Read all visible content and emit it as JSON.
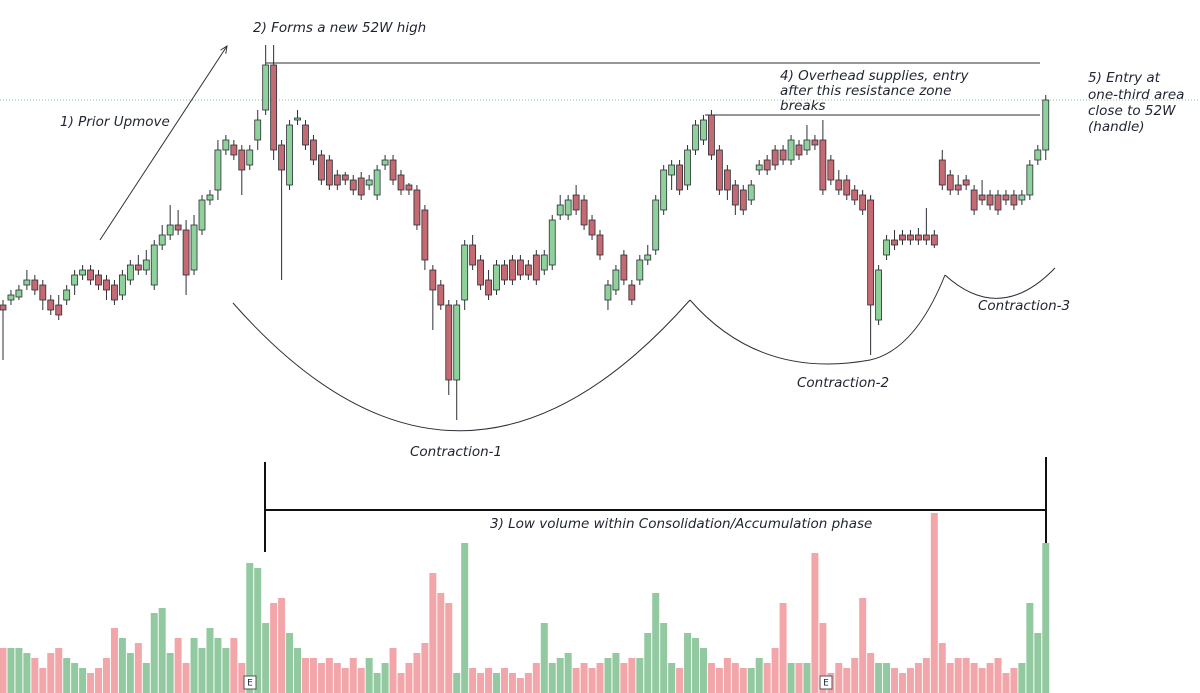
{
  "chart_data": {
    "type": "candlestick",
    "up_color": "#8fd19b",
    "down_color": "#c46a72",
    "volume_up_color": "#93c9a0",
    "volume_down_color": "#f3a6aa",
    "ylim": [
      7,
      700
    ],
    "vlim": [
      0,
      200
    ],
    "open": [
      395,
      400,
      403,
      415,
      420,
      415,
      400,
      395,
      400,
      415,
      425,
      430,
      425,
      420,
      415,
      405,
      420,
      435,
      430,
      415,
      455,
      465,
      475,
      470,
      430,
      470,
      500,
      510,
      550,
      555,
      550,
      535,
      560,
      590,
      635,
      555,
      515,
      580,
      575,
      560,
      545,
      540,
      525,
      525,
      520,
      522,
      515,
      505,
      535,
      540,
      525,
      515,
      510,
      490,
      430,
      415,
      395,
      320,
      400,
      455,
      440,
      420,
      410,
      435,
      440,
      440,
      435,
      445,
      430,
      435,
      485,
      485,
      505,
      500,
      480,
      465,
      400,
      410,
      445,
      415,
      420,
      440,
      450,
      490,
      525,
      535,
      515,
      550,
      560,
      585,
      550,
      530,
      515,
      510,
      500,
      530,
      540,
      550,
      550,
      540,
      555,
      550,
      560,
      560,
      540,
      520,
      520,
      510,
      505,
      500,
      380,
      445,
      460,
      465,
      465,
      465,
      465,
      465,
      540,
      525,
      515,
      520,
      510,
      505,
      505,
      505,
      505,
      505,
      500,
      505,
      540,
      550
    ],
    "high": [
      400,
      410,
      415,
      430,
      425,
      420,
      405,
      405,
      415,
      430,
      435,
      435,
      430,
      425,
      420,
      430,
      440,
      445,
      450,
      460,
      475,
      495,
      490,
      480,
      485,
      505,
      510,
      560,
      565,
      560,
      555,
      555,
      590,
      655,
      655,
      560,
      580,
      590,
      580,
      565,
      550,
      545,
      530,
      528,
      525,
      528,
      525,
      535,
      545,
      545,
      530,
      517,
      515,
      495,
      435,
      420,
      400,
      400,
      460,
      465,
      445,
      430,
      440,
      440,
      445,
      445,
      440,
      450,
      450,
      485,
      505,
      505,
      515,
      505,
      485,
      470,
      420,
      435,
      450,
      420,
      445,
      455,
      505,
      535,
      540,
      540,
      555,
      580,
      585,
      590,
      555,
      535,
      520,
      515,
      520,
      540,
      545,
      555,
      555,
      565,
      560,
      575,
      565,
      580,
      545,
      530,
      525,
      515,
      510,
      505,
      435,
      465,
      470,
      470,
      470,
      472,
      492,
      470,
      550,
      530,
      525,
      525,
      515,
      520,
      510,
      510,
      510,
      510,
      510,
      540,
      555,
      605
    ],
    "low": [
      340,
      395,
      400,
      410,
      405,
      390,
      385,
      380,
      395,
      405,
      420,
      415,
      410,
      400,
      395,
      400,
      415,
      425,
      425,
      410,
      450,
      460,
      465,
      405,
      425,
      465,
      495,
      500,
      545,
      540,
      505,
      530,
      550,
      585,
      540,
      420,
      510,
      575,
      550,
      535,
      515,
      510,
      510,
      515,
      505,
      500,
      510,
      500,
      530,
      515,
      505,
      505,
      470,
      430,
      370,
      390,
      305,
      280,
      390,
      430,
      410,
      400,
      405,
      415,
      415,
      420,
      420,
      415,
      425,
      430,
      480,
      480,
      485,
      470,
      460,
      440,
      390,
      405,
      415,
      395,
      415,
      435,
      445,
      485,
      510,
      505,
      510,
      545,
      555,
      540,
      505,
      500,
      485,
      485,
      495,
      525,
      525,
      530,
      535,
      535,
      540,
      545,
      550,
      505,
      515,
      505,
      500,
      495,
      485,
      345,
      375,
      440,
      450,
      455,
      455,
      455,
      455,
      452,
      510,
      505,
      505,
      510,
      485,
      495,
      490,
      485,
      495,
      490,
      495,
      500,
      535,
      540
    ],
    "close": [
      390,
      405,
      410,
      420,
      410,
      400,
      390,
      385,
      410,
      425,
      430,
      420,
      415,
      410,
      400,
      425,
      435,
      430,
      440,
      455,
      465,
      475,
      470,
      425,
      475,
      500,
      505,
      550,
      560,
      545,
      530,
      550,
      580,
      635,
      550,
      530,
      575,
      582,
      555,
      540,
      520,
      515,
      515,
      520,
      510,
      505,
      520,
      530,
      540,
      520,
      510,
      510,
      475,
      440,
      410,
      395,
      320,
      395,
      455,
      435,
      415,
      405,
      435,
      420,
      420,
      425,
      425,
      420,
      445,
      480,
      495,
      500,
      490,
      475,
      465,
      445,
      415,
      430,
      420,
      400,
      440,
      445,
      500,
      530,
      535,
      510,
      550,
      575,
      580,
      545,
      510,
      510,
      495,
      490,
      515,
      535,
      530,
      535,
      540,
      560,
      545,
      560,
      555,
      510,
      520,
      510,
      505,
      500,
      490,
      395,
      430,
      460,
      455,
      460,
      460,
      460,
      460,
      455,
      515,
      510,
      510,
      515,
      490,
      500,
      495,
      490,
      500,
      495,
      505,
      535,
      550,
      600
    ],
    "volume": [
      45,
      45,
      45,
      40,
      35,
      25,
      40,
      45,
      35,
      30,
      25,
      20,
      25,
      35,
      65,
      55,
      40,
      50,
      30,
      80,
      85,
      40,
      55,
      30,
      55,
      45,
      65,
      55,
      45,
      55,
      30,
      130,
      125,
      70,
      90,
      95,
      60,
      45,
      35,
      35,
      30,
      35,
      30,
      25,
      35,
      25,
      35,
      20,
      30,
      45,
      20,
      30,
      40,
      50,
      120,
      100,
      90,
      20,
      150,
      25,
      20,
      25,
      20,
      25,
      20,
      15,
      20,
      30,
      70,
      30,
      35,
      40,
      25,
      30,
      25,
      30,
      35,
      40,
      30,
      35,
      35,
      60,
      100,
      70,
      30,
      25,
      60,
      55,
      45,
      30,
      25,
      35,
      30,
      25,
      25,
      35,
      30,
      45,
      90,
      30,
      30,
      30,
      140,
      70,
      20,
      30,
      25,
      35,
      95,
      40,
      30,
      30,
      25,
      20,
      25,
      30,
      35,
      180,
      50,
      30,
      35,
      35,
      30,
      25,
      30,
      35,
      20,
      25,
      30,
      90,
      60,
      150
    ],
    "earnings_marker": "E",
    "annotations": {
      "prior_upmove": "1) Prior Upmove",
      "new_high": "2) Forms a new 52W high",
      "low_volume": "3) Low volume within Consolidation/Accumulation phase",
      "overhead_supply": [
        "4) Overhead supplies, entry",
        "after this resistance zone",
        "breaks"
      ],
      "entry": [
        "5) Entry at",
        "one-third area",
        "close to 52W",
        "(handle)"
      ],
      "contraction_1": "Contraction-1",
      "contraction_2": "Contraction-2",
      "contraction_3": "Contraction-3"
    }
  }
}
